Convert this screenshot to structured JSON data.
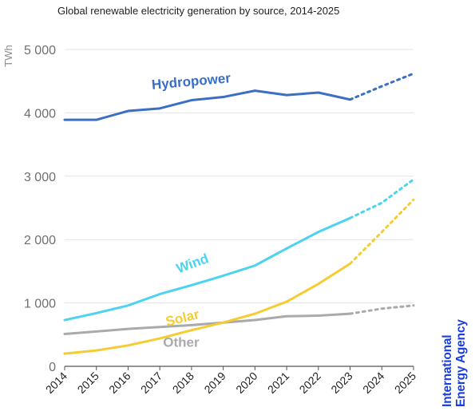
{
  "chart_data": {
    "type": "line",
    "title": "Global renewable electricity generation by source, 2014-2025",
    "ylabel": "TWh",
    "xlabel": "",
    "x": [
      "2014",
      "2015",
      "2016",
      "2017",
      "2018",
      "2019",
      "2020",
      "2021",
      "2022",
      "2023",
      "2024",
      "2025"
    ],
    "y_ticks": [
      "0",
      "1 000",
      "2 000",
      "3 000",
      "4 000",
      "5 000"
    ],
    "ylim": [
      0,
      5000
    ],
    "grid": "horizontal",
    "legend": "inline labels",
    "forecast_from": "2023",
    "series": [
      {
        "name": "Hydropower",
        "color": "#3a6fc4",
        "values": [
          3890,
          3890,
          4030,
          4070,
          4200,
          4250,
          4350,
          4280,
          4320,
          4210,
          4420,
          4620
        ]
      },
      {
        "name": "Wind",
        "color": "#4dd2f2",
        "values": [
          730,
          840,
          960,
          1140,
          1280,
          1430,
          1590,
          1860,
          2120,
          2340,
          2580,
          2950
        ]
      },
      {
        "name": "Solar",
        "color": "#f5cd32",
        "values": [
          200,
          250,
          330,
          440,
          570,
          690,
          830,
          1020,
          1300,
          1620,
          2120,
          2630
        ]
      },
      {
        "name": "Other",
        "color": "#aaaaaa",
        "values": [
          510,
          550,
          590,
          620,
          650,
          690,
          730,
          790,
          800,
          830,
          910,
          960
        ]
      }
    ]
  },
  "branding": {
    "line1": "International",
    "line2": "Energy Agency"
  }
}
